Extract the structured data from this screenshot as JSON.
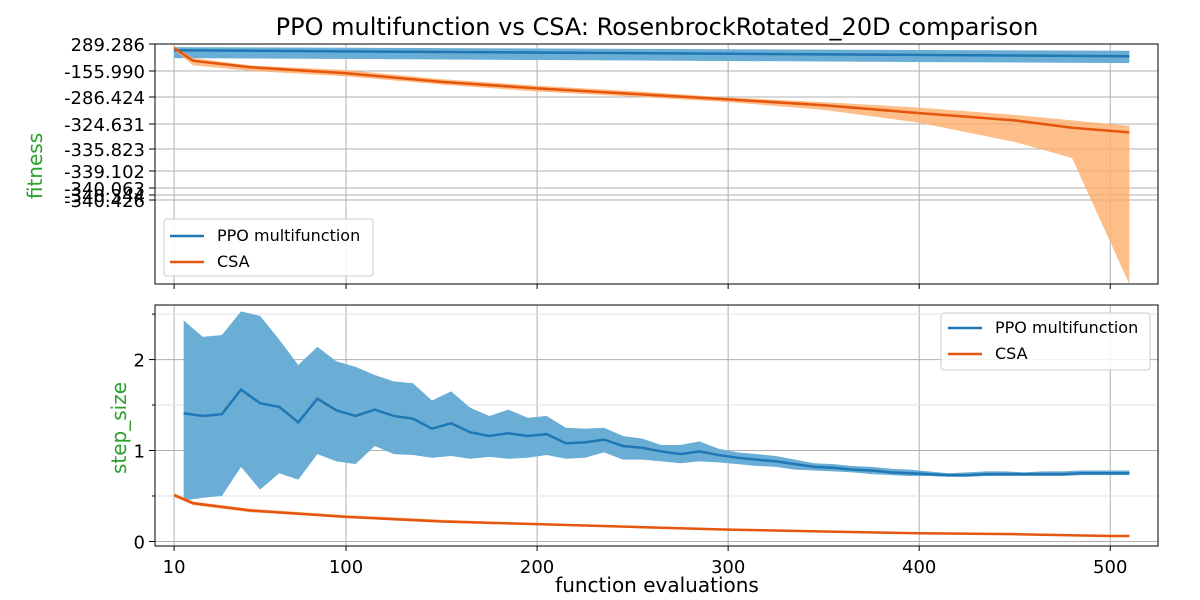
{
  "figure": {
    "title": "PPO multifunction vs CSA: RosenbrockRotated_20D comparison",
    "xlabel": "function evaluations",
    "colors": {
      "ppo": "#1f77b4",
      "ppo_band": "#6aaed6",
      "csa": "#e6550d",
      "csa_band": "#fdae6b",
      "ylabel": "#2ca02c"
    }
  },
  "chart_data": [
    {
      "type": "line",
      "name": "fitness",
      "ylabel": "fitness",
      "y_ticks": [
        "289.286",
        "-155.990",
        "-286.424",
        "-324.631",
        "-335.823",
        "-339.102",
        "-340.063",
        "-340.344",
        "-340.426"
      ],
      "x_ticks": [
        10,
        100,
        200,
        300,
        400,
        500
      ],
      "xlim": [
        0,
        525
      ],
      "grid": true,
      "legend_position": "lower-left",
      "series": [
        {
          "name": "PPO multifunction",
          "color": "#1f77b4",
          "x": [
            10,
            510
          ],
          "y_display": [
            0.95,
            0.82
          ],
          "band_lower": [
            0.78,
            0.67
          ],
          "band_upper": [
            1.02,
            0.94
          ]
        },
        {
          "name": "CSA",
          "color": "#e6550d",
          "x": [
            10,
            20,
            50,
            100,
            150,
            200,
            250,
            300,
            350,
            400,
            450,
            480,
            510
          ],
          "y_display": [
            1.0,
            0.72,
            0.58,
            0.45,
            0.26,
            0.12,
            0.0,
            -0.12,
            -0.25,
            -0.42,
            -0.58,
            -0.74,
            -0.84
          ],
          "band_lower": [
            0.95,
            0.62,
            0.5,
            0.38,
            0.2,
            0.05,
            -0.06,
            -0.18,
            -0.35,
            -0.63,
            -1.05,
            -1.4,
            -4.15
          ],
          "band_upper": [
            1.05,
            0.78,
            0.62,
            0.52,
            0.32,
            0.18,
            0.06,
            -0.08,
            -0.18,
            -0.3,
            -0.46,
            -0.58,
            -0.7
          ]
        }
      ]
    },
    {
      "type": "line",
      "name": "step_size",
      "ylabel": "step_size",
      "y_ticks": [
        0,
        1,
        2
      ],
      "ylim": [
        -0.05,
        2.6
      ],
      "x_ticks": [
        10,
        100,
        200,
        300,
        400,
        500
      ],
      "xlim": [
        0,
        525
      ],
      "grid": true,
      "legend_position": "upper-right",
      "series": [
        {
          "name": "PPO multifunction",
          "color": "#1f77b4",
          "x": [
            15,
            25,
            35,
            45,
            55,
            65,
            75,
            85,
            95,
            105,
            115,
            125,
            135,
            145,
            155,
            165,
            175,
            185,
            195,
            205,
            215,
            225,
            235,
            245,
            255,
            265,
            275,
            285,
            295,
            305,
            315,
            325,
            335,
            345,
            355,
            365,
            375,
            385,
            395,
            405,
            415,
            425,
            435,
            445,
            455,
            465,
            475,
            485,
            495,
            505,
            510
          ],
          "y": [
            1.41,
            1.38,
            1.4,
            1.67,
            1.52,
            1.48,
            1.31,
            1.57,
            1.44,
            1.38,
            1.45,
            1.38,
            1.35,
            1.24,
            1.3,
            1.2,
            1.16,
            1.19,
            1.16,
            1.18,
            1.08,
            1.09,
            1.12,
            1.05,
            1.03,
            0.99,
            0.96,
            0.99,
            0.95,
            0.92,
            0.9,
            0.88,
            0.85,
            0.82,
            0.81,
            0.79,
            0.78,
            0.76,
            0.75,
            0.74,
            0.73,
            0.73,
            0.74,
            0.74,
            0.74,
            0.74,
            0.74,
            0.75,
            0.75,
            0.75,
            0.75
          ],
          "band_lower": [
            0.45,
            0.48,
            0.5,
            0.82,
            0.57,
            0.75,
            0.68,
            0.96,
            0.88,
            0.85,
            1.05,
            0.96,
            0.95,
            0.92,
            0.94,
            0.91,
            0.93,
            0.91,
            0.92,
            0.95,
            0.91,
            0.92,
            0.98,
            0.9,
            0.9,
            0.88,
            0.86,
            0.88,
            0.87,
            0.85,
            0.83,
            0.82,
            0.79,
            0.78,
            0.77,
            0.76,
            0.74,
            0.73,
            0.72,
            0.72,
            0.71,
            0.71,
            0.72,
            0.72,
            0.72,
            0.72,
            0.72,
            0.73,
            0.73,
            0.73,
            0.73
          ],
          "band_upper": [
            2.43,
            2.25,
            2.27,
            2.53,
            2.48,
            2.22,
            1.94,
            2.14,
            1.98,
            1.92,
            1.83,
            1.76,
            1.74,
            1.55,
            1.65,
            1.47,
            1.38,
            1.45,
            1.36,
            1.38,
            1.25,
            1.24,
            1.25,
            1.16,
            1.13,
            1.06,
            1.06,
            1.1,
            1.02,
            0.98,
            0.96,
            0.94,
            0.9,
            0.86,
            0.85,
            0.83,
            0.82,
            0.8,
            0.79,
            0.77,
            0.75,
            0.76,
            0.77,
            0.77,
            0.76,
            0.77,
            0.77,
            0.78,
            0.78,
            0.78,
            0.78
          ]
        },
        {
          "name": "CSA",
          "color": "#e6550d",
          "x": [
            10,
            20,
            50,
            100,
            150,
            200,
            250,
            300,
            350,
            400,
            450,
            500,
            510
          ],
          "y": [
            0.51,
            0.42,
            0.34,
            0.27,
            0.22,
            0.19,
            0.16,
            0.13,
            0.11,
            0.09,
            0.08,
            0.06,
            0.06
          ],
          "band_lower": [
            0.49,
            0.4,
            0.32,
            0.26,
            0.21,
            0.18,
            0.15,
            0.12,
            0.1,
            0.08,
            0.07,
            0.05,
            0.05
          ],
          "band_upper": [
            0.53,
            0.44,
            0.36,
            0.29,
            0.24,
            0.2,
            0.17,
            0.14,
            0.12,
            0.1,
            0.09,
            0.07,
            0.07
          ]
        }
      ]
    }
  ]
}
